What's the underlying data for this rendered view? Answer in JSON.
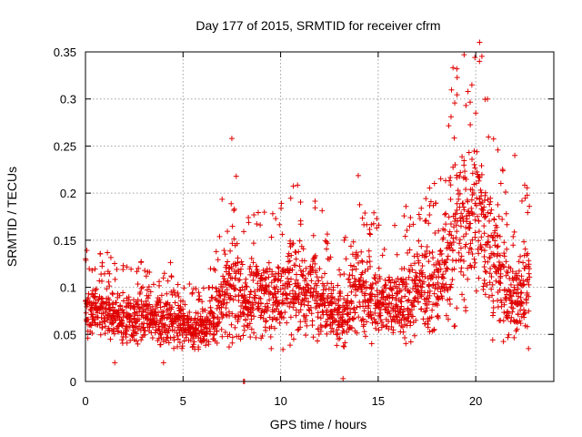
{
  "chart_data": {
    "type": "scatter",
    "title": "Day 177 of 2015, SRMTID for receiver cfrm",
    "xlabel": "GPS time / hours",
    "ylabel": "SRMTID / TECUs",
    "xlim": [
      0,
      24
    ],
    "ylim": [
      0,
      0.35
    ],
    "xticks": [
      0,
      5,
      10,
      15,
      20
    ],
    "xtick_labels": [
      "0",
      "5",
      "10",
      "15",
      "20"
    ],
    "yticks": [
      0,
      0.05,
      0.1,
      0.15,
      0.2,
      0.25,
      0.3,
      0.35
    ],
    "ytick_labels": [
      "0",
      "0.05",
      "0.1",
      "0.15",
      "0.2",
      "0.25",
      "0.3",
      "0.35"
    ],
    "grid": true,
    "marker": "+",
    "series": [
      {
        "name": "SRMTID",
        "color": "#e00000",
        "x": [
          0.0,
          0.2,
          0.4,
          0.6,
          0.8,
          1.0,
          1.2,
          1.4,
          1.6,
          1.8,
          2.0,
          2.2,
          2.4,
          2.6,
          2.8,
          3.0,
          3.2,
          3.4,
          3.6,
          3.8,
          4.0,
          4.2,
          4.4,
          4.6,
          4.8,
          5.0,
          5.2,
          5.4,
          5.6,
          5.8,
          6.0,
          6.2,
          6.4,
          6.6,
          6.8,
          7.0,
          7.2,
          7.4,
          7.6,
          7.8,
          8.0,
          8.2,
          8.4,
          8.6,
          8.8,
          9.0,
          9.2,
          9.4,
          9.6,
          9.8,
          10.0,
          10.2,
          10.4,
          10.6,
          10.8,
          11.0,
          11.2,
          11.4,
          11.6,
          11.8,
          12.0,
          12.2,
          12.4,
          12.6,
          12.8,
          13.0,
          13.2,
          13.4,
          13.6,
          13.8,
          14.0,
          14.2,
          14.4,
          14.6,
          14.8,
          15.0,
          15.2,
          15.4,
          15.6,
          15.8,
          16.0,
          16.2,
          16.4,
          16.6,
          16.8,
          17.0,
          17.2,
          17.4,
          17.6,
          17.8,
          18.0,
          18.2,
          18.4,
          18.6,
          18.8,
          19.0,
          19.2,
          19.4,
          19.6,
          19.8,
          20.0,
          20.2,
          20.4,
          20.6,
          20.8,
          21.0,
          21.2,
          21.4,
          21.6,
          21.8,
          22.0,
          22.2,
          22.4,
          22.6
        ],
        "y_median": [
          0.08,
          0.078,
          0.076,
          0.075,
          0.074,
          0.075,
          0.073,
          0.071,
          0.069,
          0.068,
          0.067,
          0.066,
          0.066,
          0.068,
          0.069,
          0.07,
          0.068,
          0.066,
          0.065,
          0.066,
          0.067,
          0.068,
          0.068,
          0.066,
          0.063,
          0.06,
          0.058,
          0.056,
          0.055,
          0.056,
          0.058,
          0.06,
          0.064,
          0.07,
          0.078,
          0.088,
          0.095,
          0.1,
          0.098,
          0.09,
          0.083,
          0.085,
          0.09,
          0.093,
          0.092,
          0.09,
          0.088,
          0.09,
          0.093,
          0.095,
          0.098,
          0.102,
          0.105,
          0.104,
          0.1,
          0.098,
          0.096,
          0.095,
          0.094,
          0.092,
          0.09,
          0.085,
          0.08,
          0.076,
          0.072,
          0.07,
          0.075,
          0.085,
          0.095,
          0.1,
          0.098,
          0.095,
          0.092,
          0.09,
          0.088,
          0.085,
          0.083,
          0.082,
          0.08,
          0.08,
          0.082,
          0.085,
          0.088,
          0.09,
          0.093,
          0.095,
          0.097,
          0.098,
          0.099,
          0.1,
          0.105,
          0.115,
          0.13,
          0.15,
          0.165,
          0.17,
          0.168,
          0.165,
          0.17,
          0.175,
          0.178,
          0.17,
          0.16,
          0.15,
          0.135,
          0.12,
          0.11,
          0.1,
          0.09,
          0.085,
          0.09,
          0.095,
          0.1,
          0.1
        ],
        "y_spread": [
          0.03,
          0.03,
          0.03,
          0.032,
          0.032,
          0.032,
          0.03,
          0.03,
          0.03,
          0.028,
          0.028,
          0.028,
          0.03,
          0.032,
          0.032,
          0.03,
          0.03,
          0.028,
          0.028,
          0.03,
          0.03,
          0.032,
          0.032,
          0.03,
          0.028,
          0.025,
          0.024,
          0.022,
          0.022,
          0.022,
          0.024,
          0.026,
          0.03,
          0.036,
          0.045,
          0.055,
          0.06,
          0.065,
          0.06,
          0.05,
          0.045,
          0.045,
          0.048,
          0.05,
          0.05,
          0.048,
          0.048,
          0.05,
          0.052,
          0.055,
          0.058,
          0.06,
          0.065,
          0.062,
          0.058,
          0.055,
          0.052,
          0.05,
          0.05,
          0.048,
          0.046,
          0.042,
          0.038,
          0.036,
          0.034,
          0.034,
          0.04,
          0.052,
          0.06,
          0.062,
          0.058,
          0.055,
          0.05,
          0.048,
          0.046,
          0.044,
          0.042,
          0.042,
          0.042,
          0.044,
          0.046,
          0.048,
          0.05,
          0.05,
          0.052,
          0.054,
          0.056,
          0.058,
          0.06,
          0.062,
          0.065,
          0.072,
          0.08,
          0.09,
          0.095,
          0.098,
          0.096,
          0.094,
          0.096,
          0.098,
          0.096,
          0.09,
          0.085,
          0.08,
          0.075,
          0.068,
          0.062,
          0.058,
          0.052,
          0.05,
          0.052,
          0.055,
          0.058,
          0.058
        ],
        "points_per_bin": 22,
        "notable_points": [
          [
            8.1,
            0.0
          ],
          [
            8.15,
            0.0
          ],
          [
            13.2,
            0.003
          ],
          [
            19.6,
            0.308
          ],
          [
            19.8,
            0.315
          ],
          [
            20.6,
            0.3
          ],
          [
            20.0,
            0.285
          ],
          [
            7.5,
            0.258
          ],
          [
            22.0,
            0.24
          ],
          [
            1.5,
            0.02
          ],
          [
            4.0,
            0.02
          ]
        ]
      }
    ]
  }
}
